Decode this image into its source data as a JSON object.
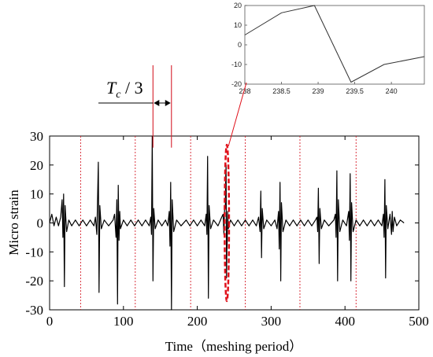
{
  "chart_data": [
    {
      "type": "line",
      "title": "",
      "xlabel": "Time（meshing period）",
      "ylabel": "Micro strain",
      "xlim": [
        0,
        500
      ],
      "ylim": [
        -30,
        30
      ],
      "xticks": [
        "0",
        "100",
        "200",
        "300",
        "400",
        "500"
      ],
      "yticks": [
        "30",
        "20",
        "10",
        "0",
        "-10",
        "-20",
        "-30"
      ],
      "grid": false,
      "legend": "none",
      "colors": {
        "signal": "#000000",
        "guides": "#d61f2b",
        "highlight": "#e0101a"
      },
      "vertical_guides_x": [
        42,
        116,
        191,
        265,
        339,
        415
      ],
      "highlight_ellipse": {
        "center_x": 240,
        "center_y": 0,
        "half_width": 3,
        "half_height": 27
      },
      "tc_markers_x": [
        140,
        165
      ],
      "annotation": {
        "main": "T",
        "sub": "c",
        "tail": " / 3"
      },
      "series": [
        {
          "values": [
            [
              0,
              0
            ],
            [
              3,
              3
            ],
            [
              6,
              -1
            ],
            [
              9,
              2
            ],
            [
              12,
              -1
            ],
            [
              15,
              2
            ],
            [
              17,
              8
            ],
            [
              18,
              -5
            ],
            [
              19,
              10
            ],
            [
              20,
              -22
            ],
            [
              21,
              6
            ],
            [
              23,
              -3
            ],
            [
              26,
              1
            ],
            [
              30,
              -1
            ],
            [
              35,
              1
            ],
            [
              40,
              -1
            ],
            [
              45,
              1
            ],
            [
              50,
              -1
            ],
            [
              55,
              1
            ],
            [
              60,
              -1
            ],
            [
              62,
              2
            ],
            [
              64,
              -4
            ],
            [
              66,
              21
            ],
            [
              67,
              -24
            ],
            [
              68,
              6
            ],
            [
              70,
              -2
            ],
            [
              74,
              1
            ],
            [
              80,
              -1
            ],
            [
              86,
              1
            ],
            [
              88,
              3
            ],
            [
              90,
              -5
            ],
            [
              91,
              8
            ],
            [
              92,
              -28
            ],
            [
              93,
              13
            ],
            [
              94,
              -6
            ],
            [
              95,
              4
            ],
            [
              96,
              -2
            ],
            [
              100,
              1
            ],
            [
              105,
              -1
            ],
            [
              110,
              1
            ],
            [
              115,
              -1
            ],
            [
              120,
              1
            ],
            [
              125,
              -1
            ],
            [
              130,
              1
            ],
            [
              135,
              -1
            ],
            [
              137,
              2
            ],
            [
              138,
              -4
            ],
            [
              139,
              30
            ],
            [
              140,
              -20
            ],
            [
              141,
              5
            ],
            [
              143,
              -2
            ],
            [
              147,
              1
            ],
            [
              152,
              -1
            ],
            [
              157,
              1
            ],
            [
              160,
              -1
            ],
            [
              162,
              4
            ],
            [
              163,
              -8
            ],
            [
              164,
              14
            ],
            [
              165,
              -30
            ],
            [
              166,
              8
            ],
            [
              168,
              -3
            ],
            [
              172,
              1
            ],
            [
              178,
              -1
            ],
            [
              185,
              1
            ],
            [
              190,
              -1
            ],
            [
              195,
              1
            ],
            [
              200,
              -1
            ],
            [
              205,
              1
            ],
            [
              210,
              -1
            ],
            [
              212,
              3
            ],
            [
              213,
              -4
            ],
            [
              214,
              23
            ],
            [
              215,
              -26
            ],
            [
              216,
              6
            ],
            [
              218,
              -2
            ],
            [
              222,
              1
            ],
            [
              228,
              -1
            ],
            [
              233,
              2
            ],
            [
              235,
              3
            ],
            [
              236,
              -4
            ],
            [
              237,
              5
            ],
            [
              238,
              5
            ],
            [
              238.5,
              16
            ],
            [
              239,
              20
            ],
            [
              239.5,
              -19
            ],
            [
              240,
              -10
            ],
            [
              240.5,
              -6
            ],
            [
              241,
              4
            ],
            [
              242,
              -2
            ],
            [
              245,
              1
            ],
            [
              250,
              -1
            ],
            [
              255,
              1
            ],
            [
              260,
              -1
            ],
            [
              265,
              1
            ],
            [
              270,
              -1
            ],
            [
              275,
              1
            ],
            [
              280,
              -1
            ],
            [
              283,
              2
            ],
            [
              285,
              -3
            ],
            [
              286,
              11
            ],
            [
              287,
              -12
            ],
            [
              288,
              5
            ],
            [
              290,
              -2
            ],
            [
              294,
              1
            ],
            [
              300,
              -1
            ],
            [
              305,
              1
            ],
            [
              308,
              -2
            ],
            [
              310,
              4
            ],
            [
              311,
              -9
            ],
            [
              312,
              14
            ],
            [
              313,
              -20
            ],
            [
              314,
              7
            ],
            [
              316,
              -3
            ],
            [
              320,
              1
            ],
            [
              325,
              -1
            ],
            [
              330,
              1
            ],
            [
              335,
              -1
            ],
            [
              340,
              1
            ],
            [
              345,
              -1
            ],
            [
              350,
              1
            ],
            [
              355,
              -1
            ],
            [
              360,
              1
            ],
            [
              362,
              2
            ],
            [
              363,
              -3
            ],
            [
              364,
              12
            ],
            [
              365,
              -14
            ],
            [
              366,
              5
            ],
            [
              368,
              -2
            ],
            [
              372,
              1
            ],
            [
              378,
              -1
            ],
            [
              385,
              1
            ],
            [
              387,
              3
            ],
            [
              388,
              -5
            ],
            [
              389,
              18
            ],
            [
              390,
              -20
            ],
            [
              391,
              8
            ],
            [
              393,
              -3
            ],
            [
              397,
              1
            ],
            [
              402,
              -1
            ],
            [
              405,
              4
            ],
            [
              406,
              -6
            ],
            [
              407,
              17
            ],
            [
              408,
              -20
            ],
            [
              409,
              7
            ],
            [
              411,
              -3
            ],
            [
              415,
              1
            ],
            [
              420,
              -1
            ],
            [
              425,
              1
            ],
            [
              430,
              -1
            ],
            [
              435,
              1
            ],
            [
              440,
              -1
            ],
            [
              445,
              1
            ],
            [
              450,
              -1
            ],
            [
              452,
              3
            ],
            [
              453,
              -5
            ],
            [
              454,
              15
            ],
            [
              455,
              -19
            ],
            [
              456,
              6
            ],
            [
              458,
              -2
            ],
            [
              461,
              3
            ],
            [
              463,
              -4
            ],
            [
              464,
              4
            ],
            [
              465,
              -3
            ],
            [
              467,
              2
            ],
            [
              470,
              -1
            ],
            [
              475,
              1
            ],
            [
              480,
              0
            ]
          ]
        }
      ]
    },
    {
      "type": "line",
      "title": "",
      "xlim": [
        238,
        240.45
      ],
      "ylim": [
        -20,
        20
      ],
      "xticks": [
        "238",
        "238.5",
        "239",
        "239.5",
        "240"
      ],
      "yticks": [
        "20",
        "10",
        "0",
        "-10",
        "-20"
      ],
      "grid": false,
      "legend": "none",
      "series": [
        {
          "values": [
            [
              238,
              5
            ],
            [
              238.5,
              16.3
            ],
            [
              238.95,
              20
            ],
            [
              239.45,
              -19
            ],
            [
              239.9,
              -10
            ],
            [
              240.45,
              -6
            ]
          ]
        }
      ]
    }
  ]
}
